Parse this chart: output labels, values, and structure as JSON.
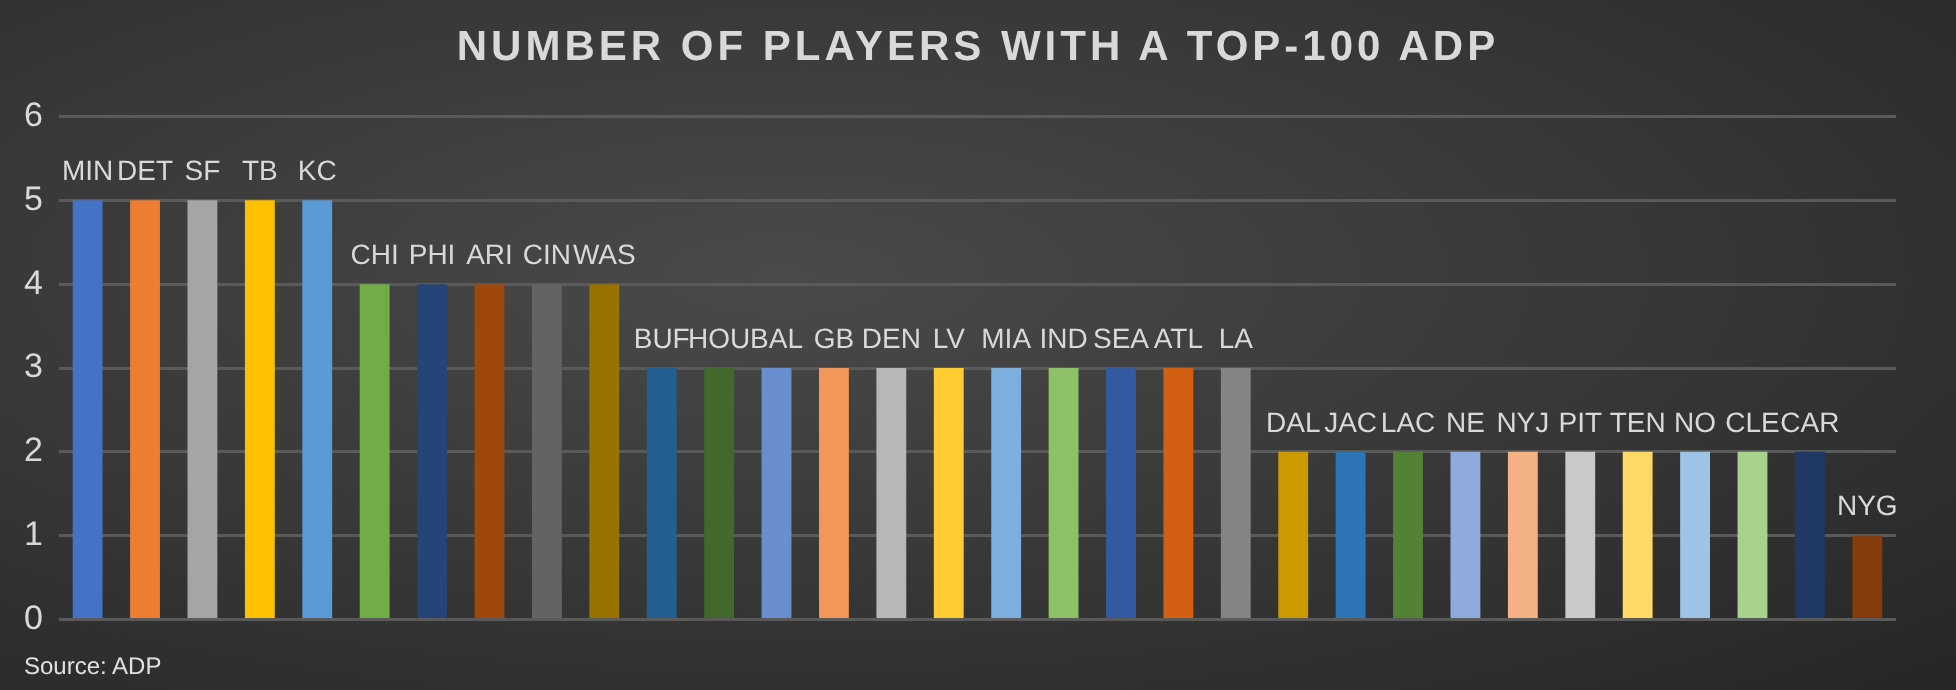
{
  "chart_data": {
    "type": "bar",
    "title": "NUMBER OF PLAYERS WITH A TOP-100 ADP",
    "categories": [
      "MIN",
      "DET",
      "SF",
      "TB",
      "KC",
      "CHI",
      "PHI",
      "ARI",
      "CIN",
      "WAS",
      "BUF",
      "HOU",
      "BAL",
      "GB",
      "DEN",
      "LV",
      "MIA",
      "IND",
      "SEA",
      "ATL",
      "LA",
      "DAL",
      "JAC",
      "LAC",
      "NE",
      "NYJ",
      "PIT",
      "TEN",
      "NO",
      "CLE",
      "CAR",
      "NYG"
    ],
    "values": [
      5,
      5,
      5,
      5,
      5,
      4,
      4,
      4,
      4,
      4,
      3,
      3,
      3,
      3,
      3,
      3,
      3,
      3,
      3,
      3,
      3,
      2,
      2,
      2,
      2,
      2,
      2,
      2,
      2,
      2,
      2,
      1
    ],
    "colors": [
      "#4472c4",
      "#ed7d31",
      "#a5a5a5",
      "#ffc000",
      "#5b9bd5",
      "#70ad47",
      "#264478",
      "#9e480e",
      "#636363",
      "#997300",
      "#255e91",
      "#43682b",
      "#698ed0",
      "#f1975a",
      "#b7b7b7",
      "#ffcd33",
      "#7cafdd",
      "#8cc168",
      "#335aa1",
      "#d26012",
      "#848484",
      "#cc9a00",
      "#2e75b6",
      "#548235",
      "#8faadc",
      "#f4b183",
      "#c9c9c9",
      "#ffd966",
      "#9dc3e6",
      "#a9d18e",
      "#203864",
      "#843c0c"
    ],
    "ylim": [
      0,
      6
    ],
    "yticks": [
      0,
      1,
      2,
      3,
      4,
      5,
      6
    ],
    "grid": "y",
    "legend": false,
    "annotations": [
      "Source: ADP"
    ]
  }
}
